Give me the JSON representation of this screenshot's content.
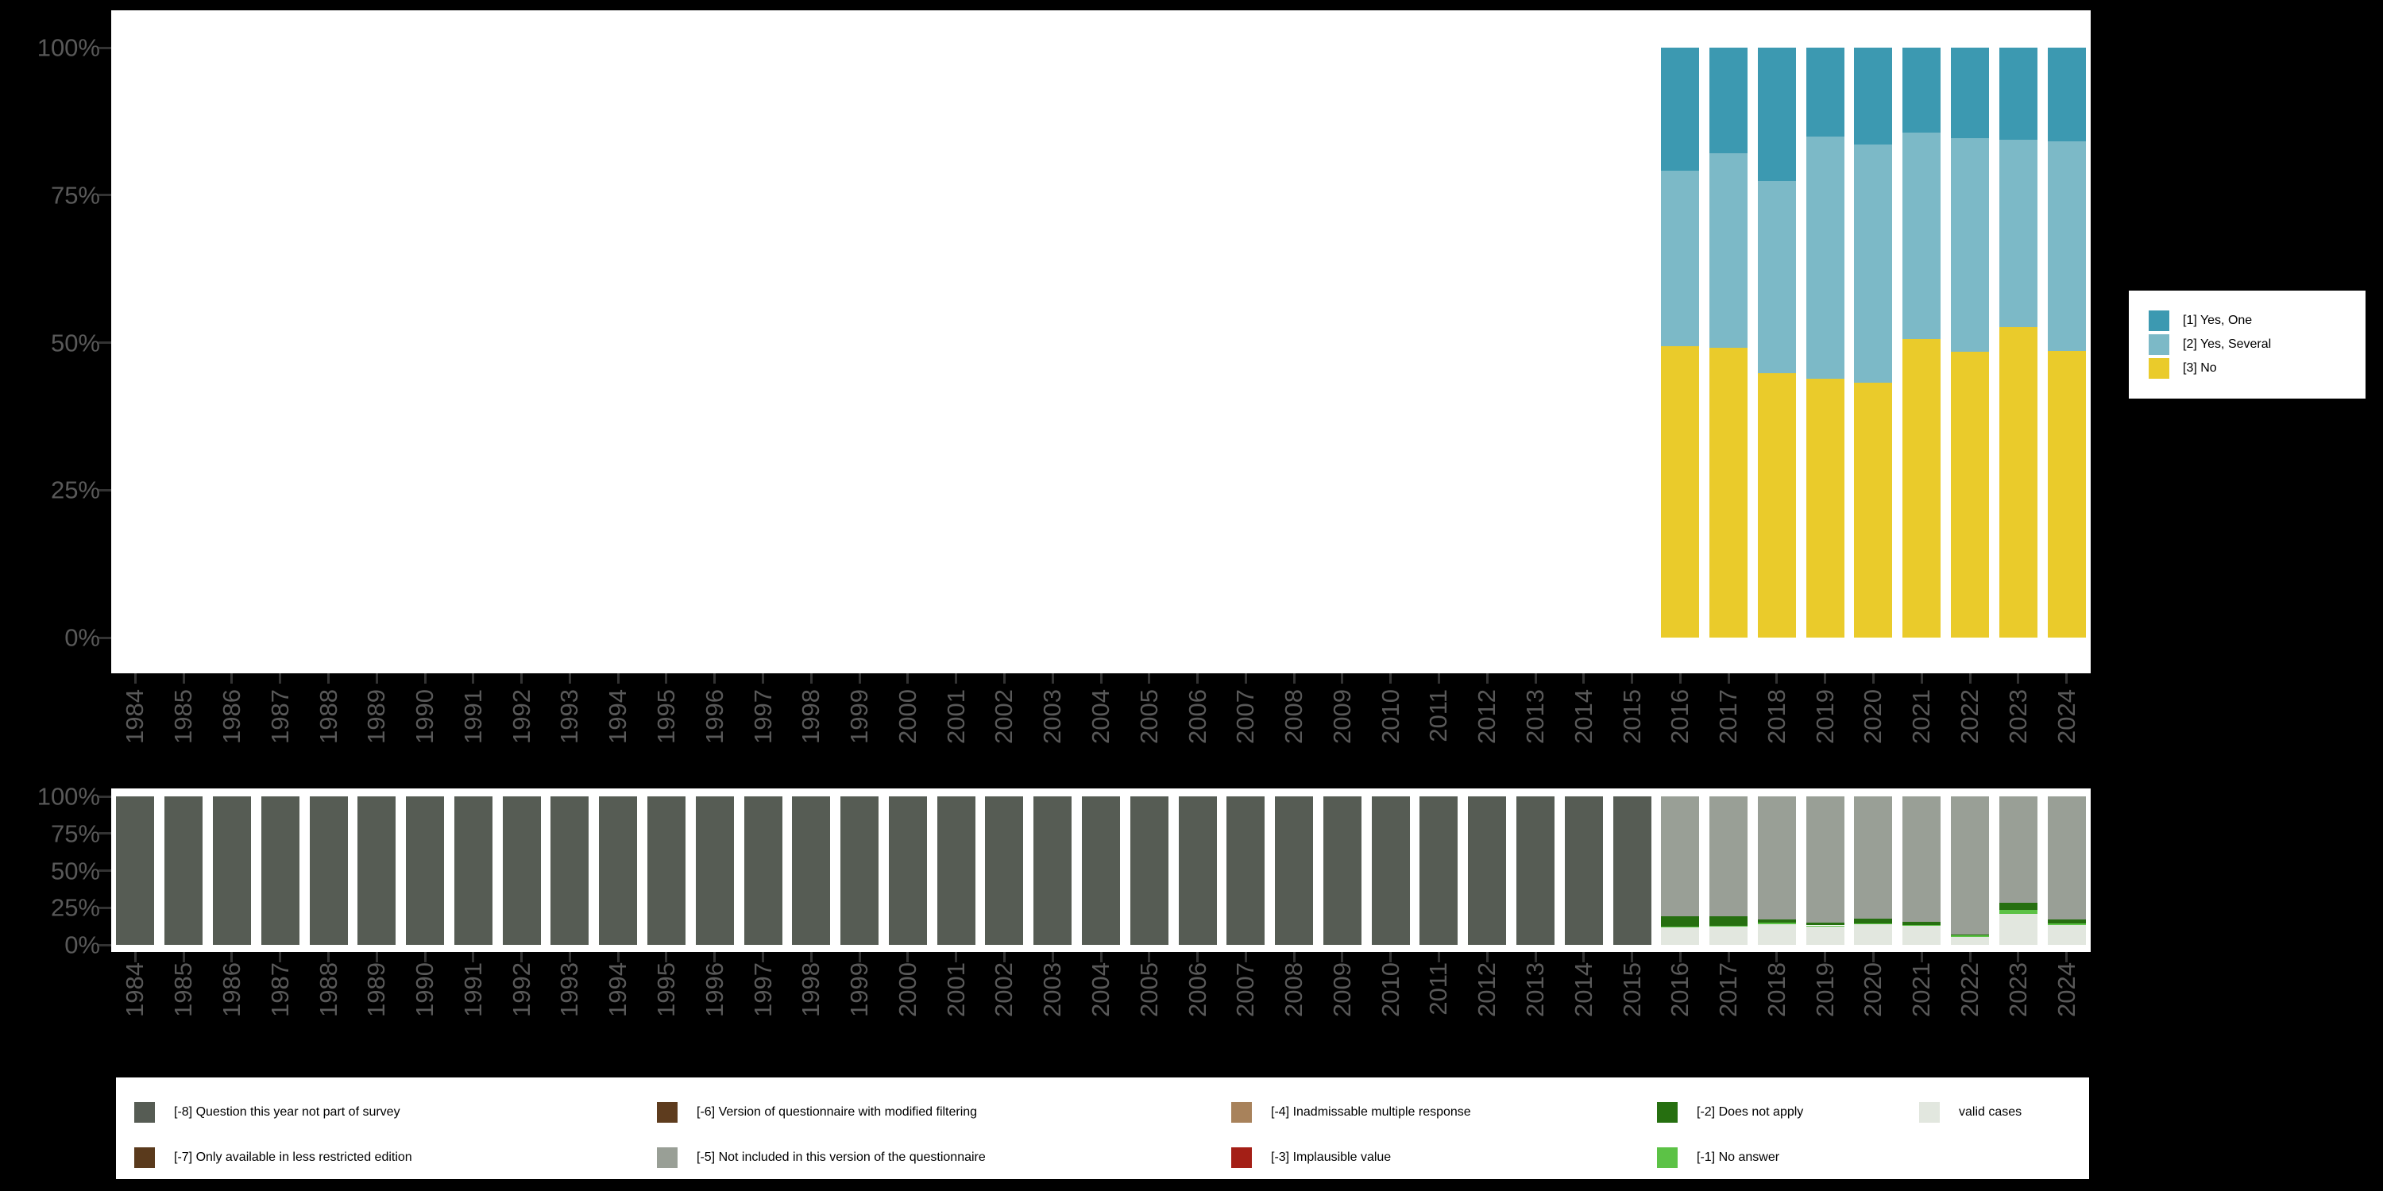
{
  "figure": {
    "background": "#000000",
    "panel_background": "#ffffff",
    "axis_text_color": "#595959",
    "axis_tick_color": "#333333"
  },
  "years": [
    "1984",
    "1985",
    "1986",
    "1987",
    "1988",
    "1989",
    "1990",
    "1991",
    "1992",
    "1993",
    "1994",
    "1995",
    "1996",
    "1997",
    "1998",
    "1999",
    "2000",
    "2001",
    "2002",
    "2003",
    "2004",
    "2005",
    "2006",
    "2007",
    "2008",
    "2009",
    "2010",
    "2011",
    "2012",
    "2013",
    "2014",
    "2015",
    "2016",
    "2017",
    "2018",
    "2019",
    "2020",
    "2021",
    "2022",
    "2023",
    "2024"
  ],
  "chart_data": [
    {
      "type": "bar",
      "stacked": true,
      "title": "",
      "xlabel": "",
      "ylabel": "",
      "unit": "percent of answers",
      "ylim": [
        0,
        100
      ],
      "grid": false,
      "legend_position": "right",
      "y_tick_labels": [
        "100%",
        "75%",
        "50%",
        "25%",
        "0%"
      ],
      "x_start_index": 32,
      "categories": [
        "2016",
        "2017",
        "2018",
        "2019",
        "2020",
        "2021",
        "2022",
        "2023",
        "2024"
      ],
      "series_order_note": "series listed top-to-bottom of the stack",
      "series": [
        {
          "name": "[1] Yes, One",
          "color": "#3c99b1",
          "values": [
            20.9,
            17.9,
            22.6,
            15.1,
            16.4,
            14.4,
            15.3,
            15.6,
            15.9
          ]
        },
        {
          "name": "[2] Yes, Several",
          "color": "#7cb9c7",
          "values": [
            29.7,
            33.0,
            32.6,
            41.0,
            40.4,
            35.0,
            36.2,
            31.8,
            35.5
          ]
        },
        {
          "name": "[3] No",
          "color": "#eacb2b",
          "values": [
            49.4,
            49.1,
            44.8,
            43.9,
            43.2,
            50.6,
            48.5,
            52.6,
            48.6
          ]
        }
      ]
    },
    {
      "type": "bar",
      "stacked": true,
      "title": "",
      "xlabel": "",
      "ylabel": "",
      "unit": "percent of cases (missing-value composition)",
      "ylim": [
        0,
        100
      ],
      "grid": false,
      "legend_position": "bottom",
      "y_tick_labels": [
        "100%",
        "75%",
        "50%",
        "25%",
        "0%"
      ],
      "x_start_index": 0,
      "categories": [
        "1984",
        "1985",
        "1986",
        "1987",
        "1988",
        "1989",
        "1990",
        "1991",
        "1992",
        "1993",
        "1994",
        "1995",
        "1996",
        "1997",
        "1998",
        "1999",
        "2000",
        "2001",
        "2002",
        "2003",
        "2004",
        "2005",
        "2006",
        "2007",
        "2008",
        "2009",
        "2010",
        "2011",
        "2012",
        "2013",
        "2014",
        "2015",
        "2016",
        "2017",
        "2018",
        "2019",
        "2020",
        "2021",
        "2022",
        "2023",
        "2024"
      ],
      "series_order_note": "series listed top-to-bottom of the stack",
      "series": [
        {
          "name": "[-8] Question this year not part of survey",
          "color": "#565c54",
          "values": [
            100,
            100,
            100,
            100,
            100,
            100,
            100,
            100,
            100,
            100,
            100,
            100,
            100,
            100,
            100,
            100,
            100,
            100,
            100,
            100,
            100,
            100,
            100,
            100,
            100,
            100,
            100,
            100,
            100,
            100,
            100,
            100,
            0,
            0,
            0,
            0,
            0,
            0,
            0,
            0,
            0
          ]
        },
        {
          "name": "[-5] Not included in this version of the questionnaire",
          "color": "#999f96",
          "values": [
            0,
            0,
            0,
            0,
            0,
            0,
            0,
            0,
            0,
            0,
            0,
            0,
            0,
            0,
            0,
            0,
            0,
            0,
            0,
            0,
            0,
            0,
            0,
            0,
            0,
            0,
            0,
            0,
            0,
            0,
            0,
            0,
            80.7,
            80.7,
            83.0,
            84.9,
            82.5,
            84.6,
            92.8,
            71.9,
            83.1
          ]
        },
        {
          "name": "[-2] Does not apply",
          "color": "#266f10",
          "values": [
            0,
            0,
            0,
            0,
            0,
            0,
            0,
            0,
            0,
            0,
            0,
            0,
            0,
            0,
            0,
            0,
            0,
            0,
            0,
            0,
            0,
            0,
            0,
            0,
            0,
            0,
            0,
            0,
            0,
            0,
            0,
            0,
            7.0,
            6.2,
            2.1,
            2.0,
            3.2,
            1.8,
            0.4,
            4.8,
            2.2
          ]
        },
        {
          "name": "[-1] No answer",
          "color": "#5cc246",
          "values": [
            0,
            0,
            0,
            0,
            0,
            0,
            0,
            0,
            0,
            0,
            0,
            0,
            0,
            0,
            0,
            0,
            0,
            0,
            0,
            0,
            0,
            0,
            0,
            0,
            0,
            0,
            0,
            0,
            0,
            0,
            0,
            0,
            0.3,
            0.3,
            1.0,
            0.3,
            0.4,
            0.7,
            1.3,
            2.6,
            1.3
          ]
        },
        {
          "name": "valid cases",
          "color": "#e2e7df",
          "values": [
            0,
            0,
            0,
            0,
            0,
            0,
            0,
            0,
            0,
            0,
            0,
            0,
            0,
            0,
            0,
            0,
            0,
            0,
            0,
            0,
            0,
            0,
            0,
            0,
            0,
            0,
            0,
            0,
            0,
            0,
            0,
            0,
            12.0,
            12.8,
            13.9,
            12.8,
            13.9,
            12.9,
            5.5,
            20.7,
            13.4
          ]
        }
      ]
    }
  ],
  "legend_top": {
    "items": [
      {
        "label": "[1] Yes, One",
        "color": "#3c99b1"
      },
      {
        "label": "[2] Yes, Several",
        "color": "#7cb9c7"
      },
      {
        "label": "[3] No",
        "color": "#eacb2b"
      }
    ]
  },
  "legend_bottom": {
    "items": [
      {
        "label": "[-8] Question this year not part of survey",
        "color": "#565c54",
        "col": 0,
        "row": 0
      },
      {
        "label": "[-7] Only available in less restricted edition",
        "color": "#5a3a1c",
        "col": 0,
        "row": 1
      },
      {
        "label": "[-6] Version of questionnaire with modified filtering",
        "color": "#5e3c1e",
        "col": 1,
        "row": 0
      },
      {
        "label": "[-5] Not included in this version of the questionnaire",
        "color": "#999f96",
        "col": 1,
        "row": 1
      },
      {
        "label": "[-4] Inadmissable multiple response",
        "color": "#a8825b",
        "col": 2,
        "row": 0
      },
      {
        "label": "[-3] Implausible value",
        "color": "#a41f16",
        "col": 2,
        "row": 1
      },
      {
        "label": "[-2] Does not apply",
        "color": "#266f10",
        "col": 3,
        "row": 0
      },
      {
        "label": "[-1] No answer",
        "color": "#5cc246",
        "col": 3,
        "row": 1
      },
      {
        "label": "valid cases",
        "color": "#e2e7df",
        "col": 4,
        "row": 0
      }
    ]
  }
}
